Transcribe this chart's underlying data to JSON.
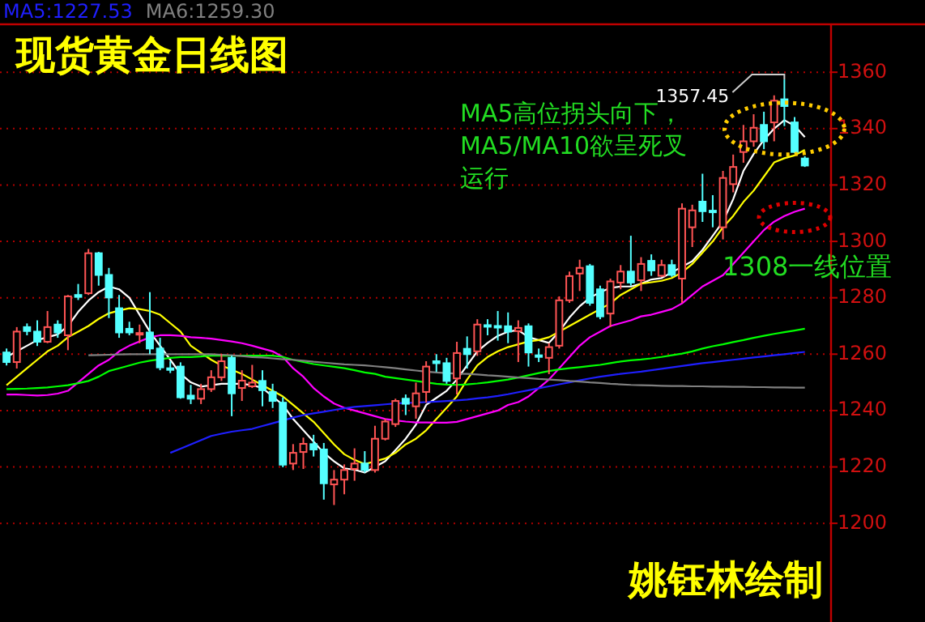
{
  "chart_data": {
    "type": "candlestick",
    "tick_labels": "y",
    "grid": "y",
    "legend": "top left",
    "ylim": [
      1165,
      1377
    ],
    "yticks": [
      1200,
      1220,
      1240,
      1260,
      1280,
      1300,
      1320,
      1340,
      1360
    ],
    "categories": [
      null,
      null,
      null,
      null,
      null,
      null,
      null,
      null,
      null,
      null,
      null,
      null,
      null,
      null,
      null,
      null,
      null,
      null,
      null,
      null,
      null,
      null,
      null,
      null,
      null,
      null,
      null,
      null,
      null,
      null,
      null,
      null,
      null,
      null,
      null,
      null,
      null,
      null,
      null,
      null,
      null,
      null,
      null,
      null,
      null,
      null,
      null,
      null,
      null,
      null,
      null,
      null,
      null,
      null,
      null,
      null,
      null,
      null,
      null,
      null,
      null,
      null,
      null,
      null,
      null,
      null,
      null,
      null,
      null,
      null,
      null,
      null,
      null,
      null,
      null,
      null,
      null,
      null,
      null
    ],
    "ohlc": [
      [
        1260.6,
        1262,
        1256,
        1257.2
      ],
      [
        1257.2,
        1269.6,
        1254.9,
        1268
      ],
      [
        1269.6,
        1270.9,
        1266.7,
        1268.2
      ],
      [
        1268,
        1272,
        1262.9,
        1264.4
      ],
      [
        1264.4,
        1275.3,
        1263.9,
        1269.6
      ],
      [
        1270.5,
        1272,
        1265.8,
        1267.7
      ],
      [
        1266.7,
        1281,
        1261.4,
        1280.5
      ],
      [
        1281,
        1284.9,
        1279.2,
        1280.3
      ],
      [
        1281.6,
        1297.3,
        1281,
        1295.8
      ],
      [
        1295.8,
        1296.3,
        1284.3,
        1288.1
      ],
      [
        1288.1,
        1290.6,
        1272.8,
        1280.1
      ],
      [
        1276.3,
        1281,
        1265.8,
        1267.7
      ],
      [
        1269,
        1271.5,
        1266.7,
        1267.7
      ],
      [
        1267,
        1270.5,
        1263.9,
        1267.5
      ],
      [
        1267.7,
        1282,
        1260,
        1262
      ],
      [
        1262,
        1265.8,
        1254.3,
        1255.3
      ],
      [
        1255,
        1257.5,
        1253.3,
        1254.5
      ],
      [
        1255.6,
        1257.1,
        1244.2,
        1244.7
      ],
      [
        1245.3,
        1249.1,
        1242.3,
        1244.2
      ],
      [
        1244.2,
        1249.5,
        1242.3,
        1247.6
      ],
      [
        1247.6,
        1254.3,
        1246.6,
        1251.8
      ],
      [
        1251.8,
        1260,
        1250.5,
        1257.5
      ],
      [
        1258.7,
        1259.5,
        1238,
        1246.1
      ],
      [
        1248,
        1254.3,
        1243.4,
        1250.6
      ],
      [
        1248.6,
        1256.2,
        1248,
        1249.9
      ],
      [
        1250.5,
        1254.3,
        1241.5,
        1247.2
      ],
      [
        1246.6,
        1249.5,
        1240.9,
        1243.4
      ],
      [
        1242.8,
        1244.7,
        1219.9,
        1220.8
      ],
      [
        1221.2,
        1228.1,
        1218.9,
        1225
      ],
      [
        1225.3,
        1230.4,
        1219.3,
        1228.2
      ],
      [
        1228.1,
        1231.4,
        1223.7,
        1226.2
      ],
      [
        1226.2,
        1228.5,
        1208.4,
        1214.2
      ],
      [
        1213.8,
        1218.9,
        1206.5,
        1215.5
      ],
      [
        1215.5,
        1220.9,
        1210.3,
        1218.9
      ],
      [
        1219.3,
        1226.6,
        1215.1,
        1221.2
      ],
      [
        1221.2,
        1225.6,
        1218,
        1218.9
      ],
      [
        1218.9,
        1234.6,
        1218,
        1230
      ],
      [
        1230,
        1237.1,
        1229.4,
        1236.1
      ],
      [
        1235.2,
        1244.2,
        1234.2,
        1243.4
      ],
      [
        1244.2,
        1245.7,
        1238.4,
        1242.4
      ],
      [
        1241.5,
        1249.9,
        1237.1,
        1246.1
      ],
      [
        1246.6,
        1257.5,
        1242.8,
        1255.6
      ],
      [
        1257.5,
        1260,
        1253.7,
        1256.8
      ],
      [
        1256.8,
        1258.7,
        1249.5,
        1250.5
      ],
      [
        1251.4,
        1264.4,
        1245.7,
        1260.4
      ],
      [
        1261.9,
        1266.3,
        1254.9,
        1260
      ],
      [
        1261,
        1272.4,
        1259.4,
        1270.5
      ],
      [
        1270.3,
        1272.4,
        1266.7,
        1269.9
      ],
      [
        1270,
        1275.3,
        1264.8,
        1269.6
      ],
      [
        1269.9,
        1274.8,
        1263.9,
        1268
      ],
      [
        1268.2,
        1272,
        1257.2,
        1269.3
      ],
      [
        1269.9,
        1270.9,
        1255.6,
        1260.6
      ],
      [
        1259.6,
        1262,
        1257.2,
        1259.2
      ],
      [
        1258.7,
        1263.9,
        1252.9,
        1262.5
      ],
      [
        1263,
        1280.5,
        1262,
        1279.1
      ],
      [
        1279.1,
        1289.3,
        1278.2,
        1287.7
      ],
      [
        1288.6,
        1293.5,
        1282.4,
        1290.6
      ],
      [
        1291.2,
        1292,
        1277.2,
        1278.2
      ],
      [
        1283,
        1284.3,
        1272.4,
        1273.4
      ],
      [
        1274.4,
        1286.8,
        1269.6,
        1285.8
      ],
      [
        1285.4,
        1291.6,
        1283,
        1289.3
      ],
      [
        1289.3,
        1302,
        1284.3,
        1285.4
      ],
      [
        1286.2,
        1294.4,
        1282.4,
        1292
      ],
      [
        1293.1,
        1295.4,
        1287.8,
        1289.7
      ],
      [
        1287.8,
        1293.5,
        1287.4,
        1291.6
      ],
      [
        1291.6,
        1293.5,
        1287.4,
        1288.1
      ],
      [
        1286.8,
        1313.5,
        1278.2,
        1311.6
      ],
      [
        1305,
        1313,
        1298,
        1311
      ],
      [
        1314.1,
        1324,
        1306.9,
        1310.7
      ],
      [
        1310.9,
        1316.4,
        1305,
        1310.5
      ],
      [
        1305,
        1325,
        1300.7,
        1322.5
      ],
      [
        1320.3,
        1330.8,
        1317.4,
        1326.4
      ],
      [
        1331.7,
        1341.3,
        1327.9,
        1335.5
      ],
      [
        1335.5,
        1345.1,
        1333.6,
        1340.3
      ],
      [
        1341.3,
        1346,
        1332.7,
        1335.5
      ],
      [
        1342.2,
        1351.8,
        1335.5,
        1349.9
      ],
      [
        1350.4,
        1357.45,
        1340.9,
        1348
      ],
      [
        1342.2,
        1344.1,
        1331.3,
        1331.7
      ],
      [
        1329.4,
        1330.2,
        1326.4,
        1326.9
      ]
    ],
    "colors": [
      "#54ffff",
      "#ff5454",
      "#54ffff",
      "#54ffff",
      "#ff5454",
      "#54ffff",
      "#ff5454",
      "#54ffff",
      "#ff5454",
      "#54ffff",
      "#54ffff",
      "#54ffff",
      "#54ffff",
      "#ff5454",
      "#54ffff",
      "#54ffff",
      "#54ffff",
      "#54ffff",
      "#54ffff",
      "#ff5454",
      "#ff5454",
      "#ff5454",
      "#54ffff",
      "#ff5454",
      "#ff5454",
      "#54ffff",
      "#54ffff",
      "#54ffff",
      "#ff5454",
      "#ff5454",
      "#54ffff",
      "#54ffff",
      "#ff5454",
      "#ff5454",
      "#ff5454",
      "#54ffff",
      "#ff5454",
      "#ff5454",
      "#ff5454",
      "#54ffff",
      "#ff5454",
      "#ff5454",
      "#54ffff",
      "#54ffff",
      "#ff5454",
      "#54ffff",
      "#ff5454",
      "#54ffff",
      "#54ffff",
      "#54ffff",
      "#ff5454",
      "#54ffff",
      "#54ffff",
      "#ff5454",
      "#ff5454",
      "#ff5454",
      "#ff5454",
      "#54ffff",
      "#54ffff",
      "#ff5454",
      "#ff5454",
      "#54ffff",
      "#ff5454",
      "#54ffff",
      "#ff5454",
      "#54ffff",
      "#ff5454",
      "#ff5454",
      "#54ffff",
      "#54ffff",
      "#ff5454",
      "#ff5454",
      "#ff5454",
      "#ff5454",
      "#54ffff",
      "#ff5454",
      "#54ffff",
      "#54ffff",
      "#54ffff"
    ],
    "series": [
      {
        "type": "line",
        "color": "#ffffff",
        "values": [
          1259,
          1261,
          1263,
          1265,
          1266,
          1267,
          1270,
          1275,
          1279,
          1282,
          1284,
          1283,
          1280,
          1274,
          1268,
          1263,
          1258,
          1253,
          1250,
          1248.5,
          1249,
          1249.5,
          1249.5,
          1249.5,
          1249,
          1248,
          1245,
          1242,
          1237,
          1233,
          1229,
          1225,
          1222,
          1219.5,
          1219,
          1218,
          1220,
          1222,
          1226,
          1230,
          1235,
          1242,
          1244.5,
          1247,
          1251,
          1256,
          1261,
          1264,
          1266.5,
          1268,
          1268.5,
          1266,
          1265,
          1264,
          1268,
          1273,
          1277,
          1280,
          1282,
          1283.5,
          1284,
          1284,
          1285,
          1286.5,
          1287,
          1289,
          1291,
          1293,
          1297,
          1302,
          1307,
          1315,
          1325,
          1331,
          1336,
          1340,
          1343,
          1341,
          1337
        ]
      },
      {
        "type": "line",
        "color": "#ffff00",
        "values": [
          1249,
          1252,
          1255,
          1258,
          1261,
          1263,
          1266,
          1268,
          1270,
          1272.5,
          1274.5,
          1275.5,
          1276.3,
          1276,
          1275.3,
          1274,
          1271,
          1268,
          1263,
          1260.5,
          1258,
          1256,
          1254.5,
          1253,
          1251,
          1249,
          1247,
          1245,
          1242,
          1239,
          1236,
          1232,
          1228,
          1224.5,
          1222.5,
          1221,
          1222,
          1223,
          1225,
          1228,
          1230,
          1233,
          1237,
          1241,
          1245,
          1251,
          1256,
          1259,
          1261,
          1262.5,
          1263.5,
          1264.5,
          1265,
          1266,
          1268,
          1270,
          1272,
          1274,
          1276,
          1278,
          1281,
          1283,
          1285,
          1285.5,
          1286,
          1287,
          1289,
          1292,
          1296,
          1300,
          1305,
          1309,
          1314,
          1318,
          1323,
          1328,
          1329.5,
          1330.5,
          1332.5
        ]
      },
      {
        "type": "line",
        "color": "#ff00ff",
        "values": [
          1245.7,
          1245.7,
          1245.5,
          1245.3,
          1245.5,
          1246,
          1247,
          1250,
          1253,
          1256,
          1258,
          1261,
          1263,
          1264.5,
          1266,
          1266.7,
          1266.7,
          1266.5,
          1266,
          1265.8,
          1265.5,
          1265,
          1264.5,
          1263.9,
          1263,
          1262,
          1261,
          1259,
          1255,
          1252,
          1248,
          1245,
          1242.5,
          1241,
          1240,
          1239,
          1238,
          1237,
          1236.5,
          1236.1,
          1235.8,
          1235.8,
          1235.7,
          1235.7,
          1236,
          1237,
          1238,
          1239,
          1240,
          1242,
          1243,
          1245,
          1248,
          1251,
          1255,
          1259,
          1263,
          1266,
          1268,
          1270,
          1271,
          1272,
          1273.4,
          1274,
          1275,
          1276,
          1278,
          1281,
          1284,
          1286,
          1288,
          1292,
          1296,
          1300,
          1304,
          1307,
          1309,
          1310.5,
          1311.6
        ]
      },
      {
        "type": "line",
        "color": "#00ff00",
        "values": [
          1247.6,
          1247.7,
          1247.8,
          1248,
          1248.2,
          1248.6,
          1249,
          1249.7,
          1250.5,
          1252,
          1254,
          1255,
          1256,
          1257,
          1257.7,
          1258.2,
          1258.7,
          1259,
          1259,
          1259.2,
          1259.5,
          1259.5,
          1259.5,
          1259.5,
          1259.5,
          1259.5,
          1259.5,
          1259,
          1258,
          1257.2,
          1256.5,
          1256,
          1255.5,
          1255,
          1254.3,
          1253.5,
          1253,
          1252,
          1251.5,
          1251,
          1250.5,
          1250,
          1249.5,
          1249.2,
          1249.1,
          1249.3,
          1249.6,
          1250,
          1250.5,
          1251,
          1251.7,
          1252.5,
          1253.3,
          1254,
          1254.6,
          1255,
          1255.4,
          1255.8,
          1256.2,
          1256.8,
          1257.4,
          1257.8,
          1258.1,
          1258.5,
          1259,
          1259.6,
          1260.2,
          1261,
          1262,
          1262.8,
          1263.5,
          1264.3,
          1265,
          1265.8,
          1266.5,
          1267.2,
          1267.8,
          1268.4,
          1269
        ]
      },
      {
        "type": "line",
        "name": "MA5:1227.53",
        "color": "#1f1fff",
        "values": [
          null,
          null,
          null,
          null,
          null,
          null,
          null,
          null,
          null,
          null,
          null,
          null,
          null,
          null,
          null,
          null,
          1225,
          1226.5,
          1228,
          1229.5,
          1231,
          1231.8,
          1232.5,
          1233,
          1233.5,
          1234.5,
          1235.5,
          1236.5,
          1237.5,
          1238.4,
          1239,
          1239.6,
          1240.2,
          1240.8,
          1241.3,
          1241.6,
          1241.9,
          1242.2,
          1242.5,
          1242.7,
          1242.8,
          1243,
          1243.2,
          1243.4,
          1243.6,
          1243.9,
          1244.3,
          1244.7,
          1245.2,
          1245.8,
          1246.5,
          1247.2,
          1247.9,
          1248.6,
          1249.3,
          1250,
          1250.7,
          1251.4,
          1252,
          1252.5,
          1253,
          1253.4,
          1253.8,
          1254.3,
          1254.8,
          1255.3,
          1255.8,
          1256.3,
          1256.8,
          1257.2,
          1257.6,
          1258,
          1258.4,
          1258.8,
          1259.2,
          1259.6,
          1260,
          1260.4,
          1260.8
        ]
      },
      {
        "type": "line",
        "name": "MA6:1259.30",
        "color": "#808080",
        "values": [
          null,
          null,
          null,
          null,
          null,
          null,
          null,
          null,
          1259.6,
          1259.7,
          1259.8,
          1259.9,
          1260,
          1260,
          1260,
          1260,
          1260,
          1260,
          1260,
          1260,
          1260,
          1259.8,
          1259.6,
          1259.3,
          1259,
          1258.8,
          1258.5,
          1258.2,
          1258,
          1257.7,
          1257.3,
          1257,
          1256.7,
          1256.4,
          1256.2,
          1256,
          1255.7,
          1255.4,
          1255,
          1254.6,
          1254.2,
          1253.8,
          1253.5,
          1253.3,
          1253.1,
          1253,
          1252.8,
          1252.5,
          1252.3,
          1252,
          1251.7,
          1251.5,
          1251.2,
          1251,
          1250.8,
          1250.5,
          1250.3,
          1250,
          1249.8,
          1249.5,
          1249.3,
          1249.1,
          1249,
          1248.9,
          1248.8,
          1248.7,
          1248.7,
          1248.6,
          1248.6,
          1248.5,
          1248.5,
          1248.4,
          1248.4,
          1248.3,
          1248.3,
          1248.2,
          1248.2,
          1248.1,
          1248.1
        ]
      }
    ],
    "annotations": [
      "现货黄金日线图",
      "1357.45",
      "MA5高位拐头向下，MA5/MA10欲呈死叉运行",
      "1308一线位置",
      "姚钰林绘制"
    ]
  }
}
